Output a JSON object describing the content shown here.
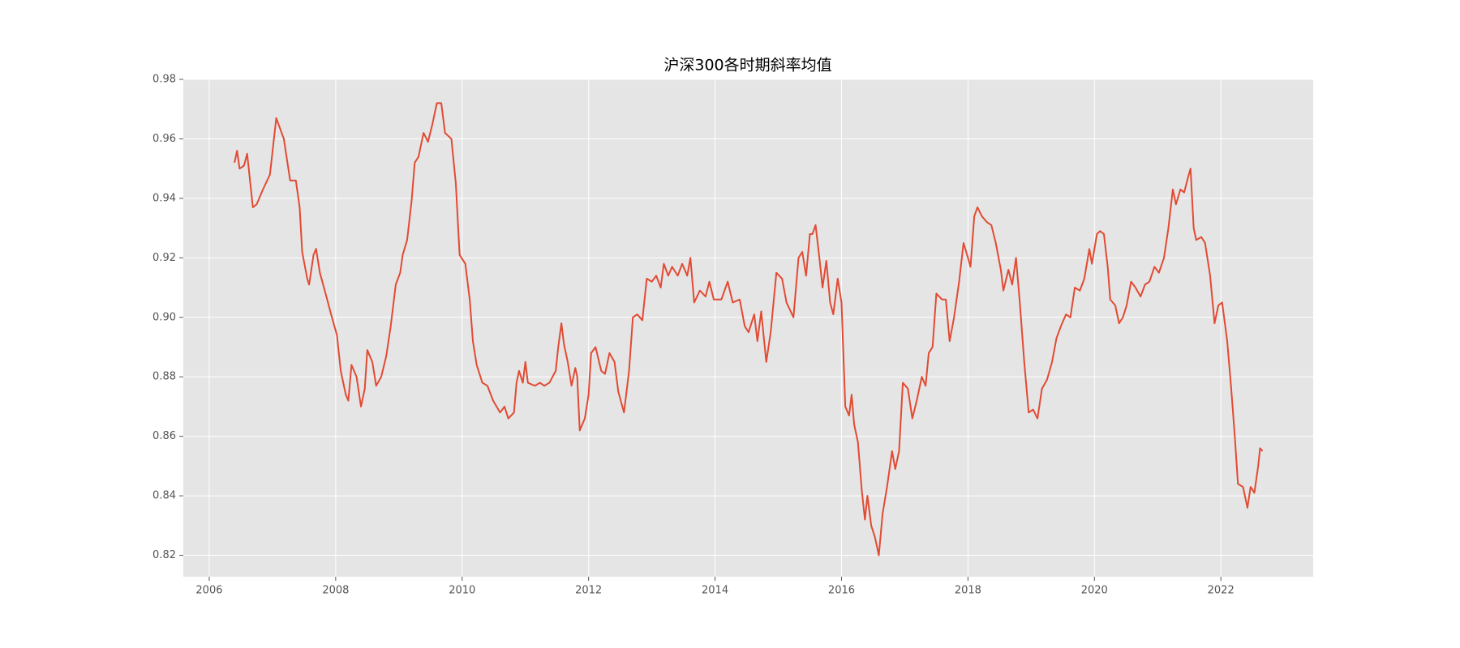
{
  "chart_data": {
    "type": "line",
    "title": "沪深300各时期斜率均值",
    "x": [
      2006.4,
      2006.44,
      2006.48,
      2006.55,
      2006.6,
      2006.69,
      2006.75,
      2006.85,
      2006.96,
      2007.06,
      2007.18,
      2007.28,
      2007.37,
      2007.43,
      2007.47,
      2007.55,
      2007.58,
      2007.65,
      2007.69,
      2007.75,
      2007.84,
      2007.94,
      2008.02,
      2008.08,
      2008.16,
      2008.2,
      2008.25,
      2008.33,
      2008.4,
      2008.46,
      2008.5,
      2008.58,
      2008.64,
      2008.72,
      2008.8,
      2008.87,
      2008.95,
      2009.02,
      2009.06,
      2009.13,
      2009.2,
      2009.25,
      2009.31,
      2009.39,
      2009.46,
      2009.53,
      2009.6,
      2009.67,
      2009.73,
      2009.83,
      2009.9,
      2009.96,
      2010.05,
      2010.12,
      2010.17,
      2010.23,
      2010.32,
      2010.4,
      2010.49,
      2010.6,
      2010.67,
      2010.73,
      2010.82,
      2010.86,
      2010.9,
      2010.96,
      2011.0,
      2011.04,
      2011.15,
      2011.23,
      2011.3,
      2011.38,
      2011.48,
      2011.52,
      2011.57,
      2011.61,
      2011.67,
      2011.73,
      2011.79,
      2011.82,
      2011.86,
      2011.94,
      2012.0,
      2012.04,
      2012.11,
      2012.2,
      2012.26,
      2012.33,
      2012.41,
      2012.47,
      2012.56,
      2012.64,
      2012.7,
      2012.77,
      2012.85,
      2012.92,
      2013.0,
      2013.07,
      2013.14,
      2013.19,
      2013.26,
      2013.32,
      2013.41,
      2013.48,
      2013.56,
      2013.61,
      2013.67,
      2013.76,
      2013.85,
      2013.91,
      2013.98,
      2014.1,
      2014.2,
      2014.28,
      2014.39,
      2014.47,
      2014.53,
      2014.62,
      2014.67,
      2014.73,
      2014.81,
      2014.88,
      2014.97,
      2015.06,
      2015.13,
      2015.24,
      2015.32,
      2015.38,
      2015.44,
      2015.5,
      2015.54,
      2015.59,
      2015.65,
      2015.7,
      2015.76,
      2015.82,
      2015.87,
      2015.94,
      2016.0,
      2016.06,
      2016.12,
      2016.16,
      2016.2,
      2016.26,
      2016.32,
      2016.37,
      2016.41,
      2016.47,
      2016.53,
      2016.59,
      2016.65,
      2016.72,
      2016.8,
      2016.85,
      2016.91,
      2016.97,
      2017.05,
      2017.12,
      2017.19,
      2017.27,
      2017.33,
      2017.38,
      2017.44,
      2017.5,
      2017.59,
      2017.65,
      2017.71,
      2017.78,
      2017.86,
      2017.93,
      2018.0,
      2018.04,
      2018.1,
      2018.15,
      2018.22,
      2018.3,
      2018.37,
      2018.44,
      2018.52,
      2018.56,
      2018.64,
      2018.7,
      2018.76,
      2018.82,
      2018.89,
      2018.96,
      2019.03,
      2019.1,
      2019.17,
      2019.25,
      2019.33,
      2019.4,
      2019.47,
      2019.55,
      2019.62,
      2019.69,
      2019.77,
      2019.84,
      2019.92,
      2019.96,
      2020.04,
      2020.09,
      2020.15,
      2020.21,
      2020.25,
      2020.33,
      2020.39,
      2020.45,
      2020.51,
      2020.58,
      2020.65,
      2020.73,
      2020.8,
      2020.87,
      2020.95,
      2021.02,
      2021.1,
      2021.17,
      2021.24,
      2021.29,
      2021.36,
      2021.42,
      2021.48,
      2021.52,
      2021.57,
      2021.61,
      2021.69,
      2021.75,
      2021.83,
      2021.9,
      2021.96,
      2022.02,
      2022.1,
      2022.16,
      2022.22,
      2022.27,
      2022.35,
      2022.42,
      2022.47,
      2022.53,
      2022.59,
      2022.62,
      2022.66
    ],
    "series": [
      {
        "color": "#e24a33",
        "values": [
          0.952,
          0.956,
          0.95,
          0.951,
          0.955,
          0.937,
          0.938,
          0.943,
          0.948,
          0.967,
          0.96,
          0.946,
          0.946,
          0.937,
          0.922,
          0.913,
          0.911,
          0.921,
          0.923,
          0.915,
          0.908,
          0.9,
          0.894,
          0.882,
          0.874,
          0.872,
          0.884,
          0.88,
          0.87,
          0.876,
          0.889,
          0.885,
          0.877,
          0.88,
          0.887,
          0.897,
          0.911,
          0.915,
          0.921,
          0.926,
          0.939,
          0.952,
          0.954,
          0.962,
          0.959,
          0.965,
          0.972,
          0.972,
          0.962,
          0.96,
          0.945,
          0.921,
          0.918,
          0.906,
          0.892,
          0.884,
          0.878,
          0.877,
          0.872,
          0.868,
          0.87,
          0.866,
          0.868,
          0.878,
          0.882,
          0.878,
          0.885,
          0.878,
          0.877,
          0.878,
          0.877,
          0.878,
          0.882,
          0.89,
          0.898,
          0.891,
          0.885,
          0.877,
          0.883,
          0.88,
          0.862,
          0.866,
          0.874,
          0.888,
          0.89,
          0.882,
          0.881,
          0.888,
          0.885,
          0.875,
          0.868,
          0.882,
          0.9,
          0.901,
          0.899,
          0.913,
          0.912,
          0.914,
          0.91,
          0.918,
          0.914,
          0.917,
          0.914,
          0.918,
          0.914,
          0.92,
          0.905,
          0.909,
          0.907,
          0.912,
          0.906,
          0.906,
          0.912,
          0.905,
          0.906,
          0.897,
          0.895,
          0.901,
          0.892,
          0.902,
          0.885,
          0.895,
          0.915,
          0.913,
          0.905,
          0.9,
          0.92,
          0.922,
          0.914,
          0.928,
          0.928,
          0.931,
          0.92,
          0.91,
          0.919,
          0.905,
          0.901,
          0.913,
          0.905,
          0.87,
          0.867,
          0.874,
          0.864,
          0.858,
          0.842,
          0.832,
          0.84,
          0.83,
          0.826,
          0.82,
          0.834,
          0.843,
          0.855,
          0.849,
          0.855,
          0.878,
          0.876,
          0.866,
          0.872,
          0.88,
          0.877,
          0.888,
          0.89,
          0.908,
          0.906,
          0.906,
          0.892,
          0.9,
          0.912,
          0.925,
          0.92,
          0.917,
          0.934,
          0.937,
          0.934,
          0.932,
          0.931,
          0.925,
          0.916,
          0.909,
          0.916,
          0.911,
          0.92,
          0.905,
          0.885,
          0.868,
          0.869,
          0.866,
          0.876,
          0.879,
          0.885,
          0.893,
          0.897,
          0.901,
          0.9,
          0.91,
          0.909,
          0.913,
          0.923,
          0.918,
          0.928,
          0.929,
          0.928,
          0.917,
          0.906,
          0.904,
          0.898,
          0.9,
          0.904,
          0.912,
          0.91,
          0.907,
          0.911,
          0.912,
          0.917,
          0.915,
          0.92,
          0.93,
          0.943,
          0.938,
          0.943,
          0.942,
          0.947,
          0.95,
          0.93,
          0.926,
          0.927,
          0.925,
          0.914,
          0.898,
          0.904,
          0.905,
          0.892,
          0.877,
          0.86,
          0.844,
          0.843,
          0.836,
          0.843,
          0.841,
          0.85,
          0.856,
          0.855
        ]
      }
    ],
    "xlim": [
      2005.59,
      2023.46
    ],
    "xticks": [
      2006,
      2008,
      2010,
      2012,
      2014,
      2016,
      2018,
      2020,
      2022
    ],
    "ylim": [
      0.8128,
      0.98
    ],
    "yticks": [
      0.82,
      0.84,
      0.86,
      0.88,
      {
        "value": 0.9,
        "label": "0.90"
      },
      0.92,
      0.94,
      0.96,
      0.98
    ],
    "grid": true
  }
}
